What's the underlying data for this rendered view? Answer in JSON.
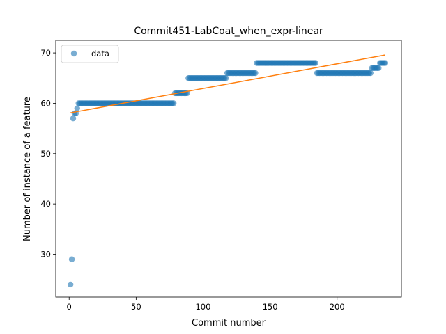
{
  "chart_data": {
    "type": "scatter",
    "title": "Commit451-LabCoat_when_expr-linear",
    "xlabel": "Commit number",
    "ylabel": "Number of instance of a feature",
    "xlim": [
      -10,
      248
    ],
    "ylim": [
      21.5,
      72.5
    ],
    "xticks": [
      0,
      50,
      100,
      150,
      200
    ],
    "yticks": [
      30,
      40,
      50,
      60,
      70
    ],
    "grid": false,
    "legend_position": "upper-left",
    "colors": {
      "points": "#1f77b4",
      "fit": "#ff7f0e"
    },
    "series": [
      {
        "name": "data",
        "kind": "points",
        "runs": [
          {
            "x": [
              1,
              1
            ],
            "y": 24
          },
          {
            "x": [
              2,
              2
            ],
            "y": 29
          },
          {
            "x": [
              3,
              3
            ],
            "y": 57
          },
          {
            "x": [
              4,
              5
            ],
            "y": 58
          },
          {
            "x": [
              6,
              6
            ],
            "y": 59
          },
          {
            "x": [
              7,
              78
            ],
            "y": 60
          },
          {
            "x": [
              79,
              88
            ],
            "y": 62
          },
          {
            "x": [
              89,
              117
            ],
            "y": 65
          },
          {
            "x": [
              118,
              139
            ],
            "y": 66
          },
          {
            "x": [
              140,
              184
            ],
            "y": 68
          },
          {
            "x": [
              185,
              225
            ],
            "y": 66
          },
          {
            "x": [
              226,
              231
            ],
            "y": 67
          },
          {
            "x": [
              232,
              236
            ],
            "y": 68
          }
        ]
      },
      {
        "name": "",
        "kind": "line",
        "x": [
          1,
          236
        ],
        "y": [
          58.1,
          69.6
        ]
      }
    ]
  }
}
